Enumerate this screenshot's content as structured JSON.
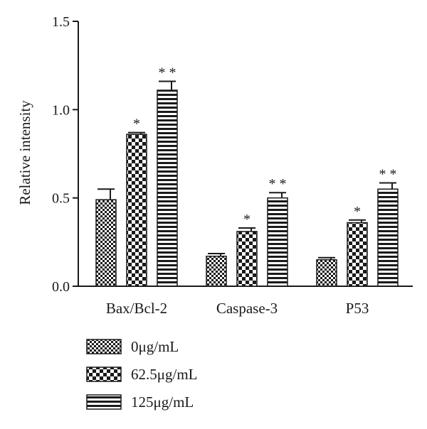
{
  "chart_data": {
    "type": "bar",
    "title": "",
    "xlabel": "",
    "ylabel": "Relative intensity",
    "ylim": [
      0,
      1.5
    ],
    "yticks": [
      "0.0",
      "0.5",
      "1.0",
      "1.5"
    ],
    "ytick_values": [
      0,
      0.5,
      1.0,
      1.5
    ],
    "grid": false,
    "legend_position": "bottom-left",
    "categories": [
      "Bax/Bcl-2",
      "Caspase-3",
      "P53"
    ],
    "series": [
      {
        "name": "0μg/mL",
        "pattern": "small-checker",
        "values": [
          0.49,
          0.17,
          0.15
        ],
        "errors": [
          0.06,
          0.015,
          0.012
        ],
        "significance": [
          "",
          "",
          ""
        ]
      },
      {
        "name": "62.5μg/mL",
        "pattern": "large-checker",
        "values": [
          0.86,
          0.31,
          0.36
        ],
        "errors": [
          0.01,
          0.02,
          0.015
        ],
        "significance": [
          "*",
          "*",
          "*"
        ]
      },
      {
        "name": "125μg/mL",
        "pattern": "horizontal-stripes",
        "values": [
          1.11,
          0.5,
          0.55
        ],
        "errors": [
          0.05,
          0.03,
          0.035
        ],
        "significance": [
          "* *",
          "* *",
          "* *"
        ]
      }
    ],
    "colors": {
      "ink": "#1a1a1a",
      "background": "#ffffff"
    }
  }
}
